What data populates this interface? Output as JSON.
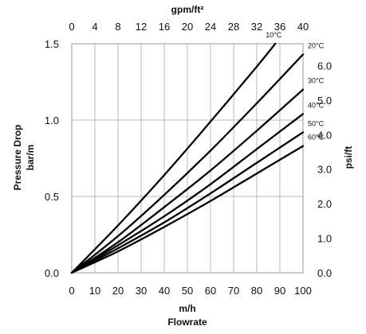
{
  "chart_data": {
    "type": "line",
    "title": "",
    "xlabel": "m/h",
    "xlabel_sub": "Flowrate",
    "ylabel": "Pressure Drop",
    "ylabel_sub": "bar/m",
    "x2label": "gpm/ft²",
    "y2label": "psi/ft",
    "xlim": [
      0,
      100
    ],
    "ylim": [
      0,
      1.5
    ],
    "x_ticks": [
      "0",
      "10",
      "20",
      "30",
      "40",
      "50",
      "60",
      "70",
      "80",
      "90",
      "100"
    ],
    "y_ticks": [
      "0.0",
      "0.5",
      "1.0",
      "1.5"
    ],
    "x2_ticks": [
      "0",
      "4",
      "8",
      "12",
      "16",
      "20",
      "24",
      "28",
      "32",
      "36",
      "40"
    ],
    "y2_ticks": [
      "0.0",
      "1.0",
      "2.0",
      "3.0",
      "4.0",
      "5.0",
      "6.0"
    ],
    "grid": true,
    "series": [
      {
        "name": "10°C",
        "x": [
          0,
          20,
          40,
          60,
          80,
          88
        ],
        "y": [
          0,
          0.31,
          0.64,
          0.99,
          1.35,
          1.5
        ]
      },
      {
        "name": "20°C",
        "x": [
          0,
          20,
          40,
          60,
          80,
          100
        ],
        "y": [
          0,
          0.24,
          0.51,
          0.8,
          1.11,
          1.43
        ]
      },
      {
        "name": "30°C",
        "x": [
          0,
          20,
          40,
          60,
          80,
          100
        ],
        "y": [
          0,
          0.2,
          0.43,
          0.67,
          0.93,
          1.2
        ]
      },
      {
        "name": "40°C",
        "x": [
          0,
          20,
          40,
          60,
          80,
          100
        ],
        "y": [
          0,
          0.18,
          0.37,
          0.58,
          0.81,
          1.04
        ]
      },
      {
        "name": "50°C",
        "x": [
          0,
          20,
          40,
          60,
          80,
          100
        ],
        "y": [
          0,
          0.16,
          0.33,
          0.52,
          0.72,
          0.92
        ]
      },
      {
        "name": "60°C",
        "x": [
          0,
          20,
          40,
          60,
          80,
          100
        ],
        "y": [
          0,
          0.14,
          0.3,
          0.47,
          0.65,
          0.83
        ]
      }
    ]
  }
}
